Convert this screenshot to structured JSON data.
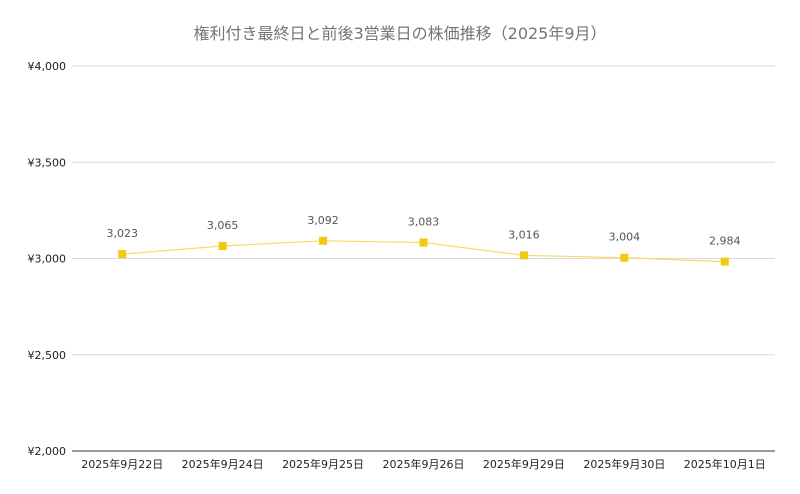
{
  "chart_data": {
    "type": "line",
    "title": "権利付き最終日と前後3営業日の株価推移（2025年9月）",
    "xlabel": "",
    "ylabel": "",
    "categories": [
      "2025年9月22日",
      "2025年9月24日",
      "2025年9月25日",
      "2025年9月26日",
      "2025年9月29日",
      "2025年9月30日",
      "2025年10月1日"
    ],
    "series": [
      {
        "values": [
          3023,
          3065,
          3092,
          3083,
          3016,
          3004,
          2984
        ],
        "data_labels": [
          "3,023",
          "3,065",
          "3,092",
          "3,083",
          "3,016",
          "3,004",
          "2,984"
        ],
        "color": "#f2c811",
        "line_color": "#f5dc6a"
      }
    ],
    "ylim": [
      2000,
      4000
    ],
    "yticks": [
      2000,
      2500,
      3000,
      3500,
      4000
    ],
    "ytick_labels": [
      "¥2,000",
      "¥2,500",
      "¥3,000",
      "¥3,500",
      "¥4,000"
    ],
    "grid": true,
    "legend": "none"
  }
}
